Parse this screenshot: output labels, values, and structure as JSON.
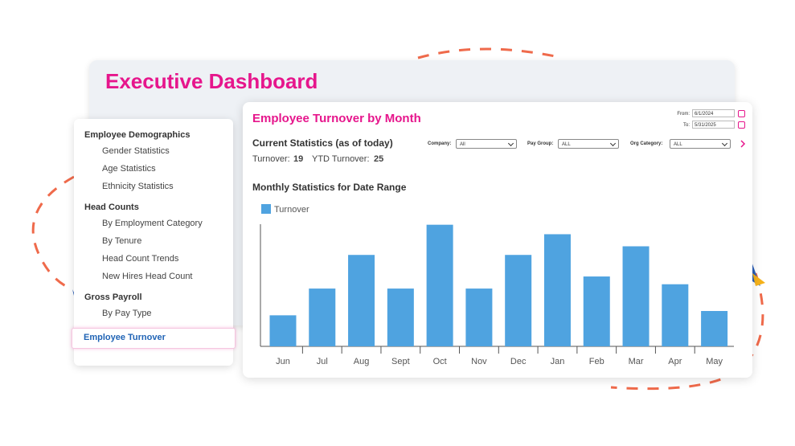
{
  "header": {
    "title": "Executive Dashboard"
  },
  "sidebar": {
    "sections": [
      {
        "title": "Employee Demographics",
        "items": [
          "Gender Statistics",
          "Age Statistics",
          "Ethnicity Statistics"
        ]
      },
      {
        "title": "Head Counts",
        "items": [
          "By Employment Category",
          "By Tenure",
          "Head Count Trends",
          "New Hires Head Count"
        ]
      },
      {
        "title": "Gross Payroll",
        "items": [
          "By Pay Type"
        ]
      }
    ],
    "active_item": "Employee Turnover"
  },
  "panel": {
    "title": "Employee Turnover by Month",
    "from_label": "From:",
    "from": "6/1/2024",
    "to_label": "To:",
    "to": "5/31/2025",
    "current_title": "Current Statistics (as of today)",
    "turnover_label": "Turnover:",
    "turnover": 19,
    "ytd_label": "YTD Turnover:",
    "ytd": 25,
    "filters": [
      {
        "label": "Company:",
        "value": "All"
      },
      {
        "label": "Pay Group:",
        "value": "ALL"
      },
      {
        "label": "Org Category:",
        "value": "ALL"
      }
    ],
    "monthly_title": "Monthly Statistics for Date Range"
  },
  "chart_data": {
    "type": "bar",
    "categories": [
      "Jun",
      "Jul",
      "Aug",
      "Sept",
      "Oct",
      "Nov",
      "Dec",
      "Jan",
      "Feb",
      "Mar",
      "Apr",
      "May"
    ],
    "series": [
      {
        "name": "Turnover",
        "color": "#4fa3e0",
        "values": [
          3.6,
          6.7,
          10.6,
          6.7,
          14.1,
          6.7,
          10.6,
          13,
          8.1,
          11.6,
          7.2,
          4.1
        ]
      }
    ],
    "ylim": [
      0,
      15
    ]
  }
}
